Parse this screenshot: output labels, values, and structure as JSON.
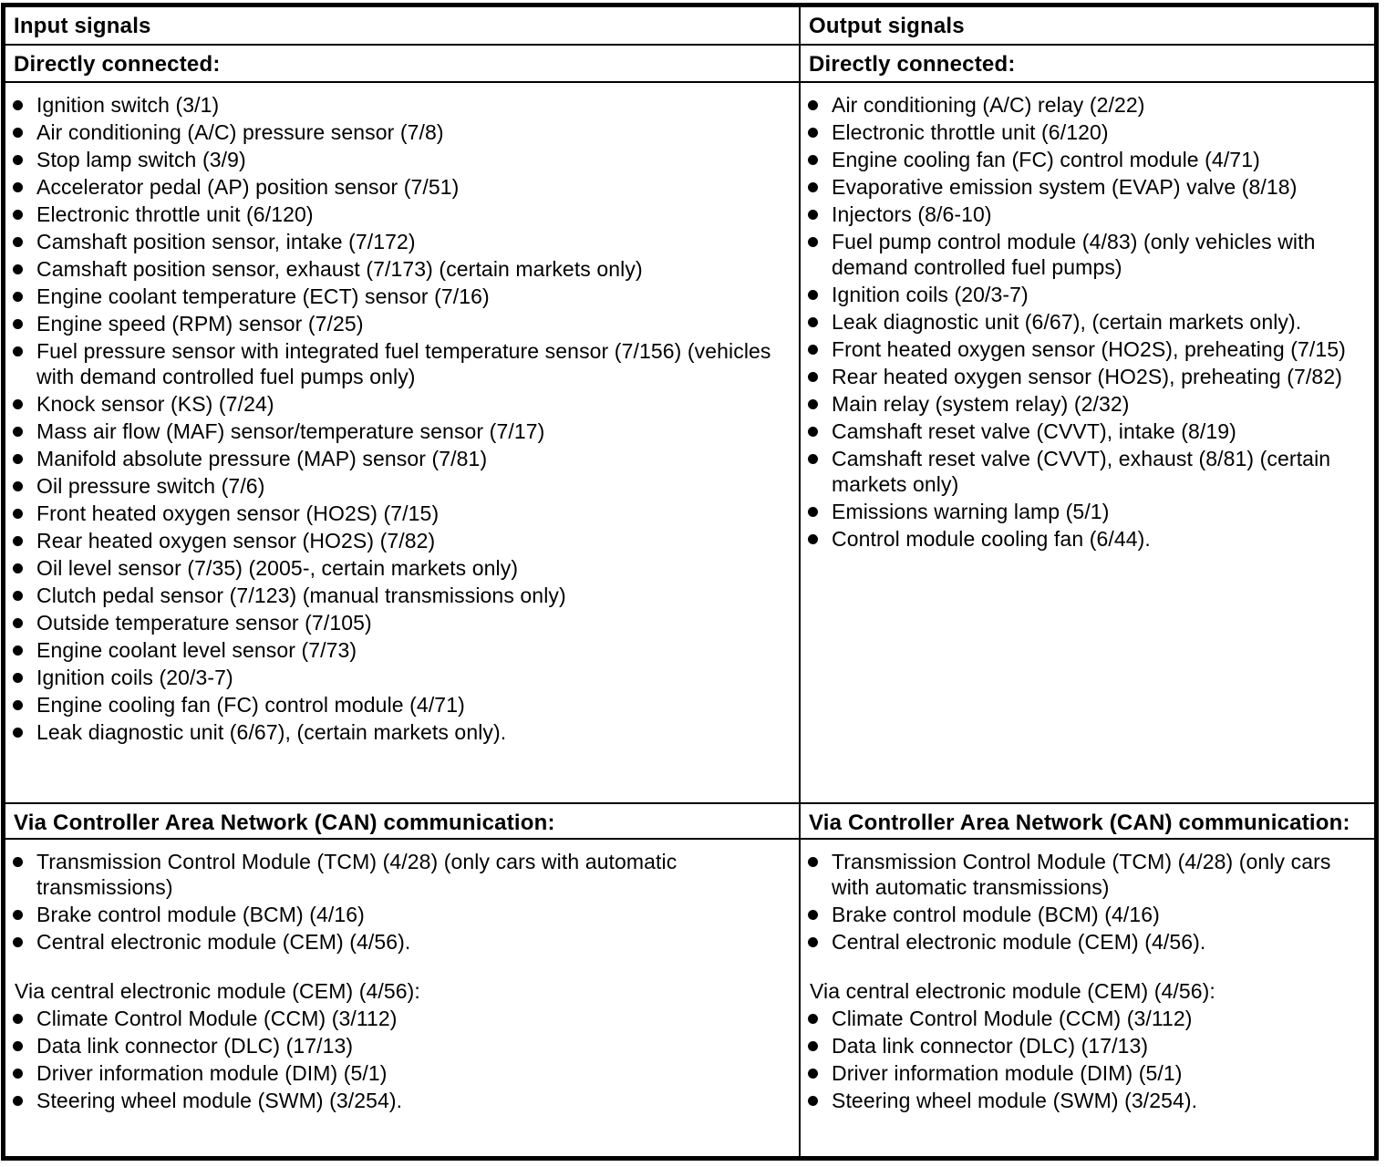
{
  "document": {
    "columns": [
      {
        "header": "Input signals",
        "directly_connected": {
          "label": "Directly connected:",
          "items": [
            "Ignition switch (3/1)",
            "Air conditioning (A/C) pressure sensor (7/8)",
            "Stop lamp switch (3/9)",
            "Accelerator pedal (AP) position sensor (7/51)",
            "Electronic throttle unit (6/120)",
            "Camshaft position sensor, intake (7/172)",
            "Camshaft position sensor, exhaust (7/173) (certain markets only)",
            "Engine coolant temperature (ECT) sensor (7/16)",
            "Engine speed (RPM) sensor (7/25)",
            "Fuel pressure sensor with integrated fuel temperature sensor (7/156) (vehicles with demand controlled fuel pumps only)",
            "Knock sensor (KS) (7/24)",
            "Mass air flow (MAF) sensor/temperature sensor (7/17)",
            "Manifold absolute pressure (MAP) sensor (7/81)",
            "Oil pressure switch (7/6)",
            "Front heated oxygen sensor (HO2S) (7/15)",
            "Rear heated oxygen sensor (HO2S) (7/82)",
            "Oil level sensor (7/35) (2005-, certain markets only)",
            "Clutch pedal sensor (7/123) (manual transmissions only)",
            "Outside temperature sensor (7/105)",
            "Engine coolant level sensor (7/73)",
            "Ignition coils (20/3-7)",
            "Engine cooling fan (FC) control module (4/71)",
            "Leak diagnostic unit (6/67), (certain markets only)."
          ]
        },
        "can": {
          "label": "Via Controller Area Network (CAN) communication:",
          "items": [
            "Transmission Control Module (TCM) (4/28) (only cars with automatic transmissions)",
            "Brake control module (BCM) (4/16)",
            "Central electronic module (CEM) (4/56)."
          ]
        },
        "via_cem": {
          "label": "Via central electronic module (CEM) (4/56):",
          "items": [
            "Climate Control Module (CCM) (3/112)",
            "Data link connector (DLC) (17/13)",
            "Driver information module (DIM) (5/1)",
            "Steering wheel module (SWM) (3/254)."
          ]
        }
      },
      {
        "header": "Output signals",
        "directly_connected": {
          "label": "Directly connected:",
          "items": [
            "Air conditioning (A/C) relay (2/22)",
            "Electronic throttle unit (6/120)",
            "Engine cooling fan (FC) control module (4/71)",
            "Evaporative emission system (EVAP) valve (8/18)",
            "Injectors (8/6-10)",
            "Fuel pump control module (4/83) (only vehicles with demand controlled fuel pumps)",
            "Ignition coils (20/3-7)",
            "Leak diagnostic unit (6/67), (certain markets only).",
            "Front heated oxygen sensor (HO2S), preheating (7/15)",
            "Rear heated oxygen sensor (HO2S), preheating (7/82)",
            "Main relay (system relay) (2/32)",
            "Camshaft reset valve (CVVT), intake (8/19)",
            "Camshaft reset valve (CVVT), exhaust (8/81) (certain markets only)",
            "Emissions warning lamp (5/1)",
            "Control module cooling fan (6/44)."
          ]
        },
        "can": {
          "label": "Via Controller Area Network (CAN) communication:",
          "items": [
            "Transmission Control Module (TCM) (4/28) (only cars with automatic transmissions)",
            "Brake control module (BCM) (4/16)",
            "Central electronic module (CEM) (4/56)."
          ]
        },
        "via_cem": {
          "label": "Via central electronic module (CEM) (4/56):",
          "items": [
            "Climate Control Module (CCM) (3/112)",
            "Data link connector (DLC) (17/13)",
            "Driver information module (DIM) (5/1)",
            "Steering wheel module (SWM) (3/254)."
          ]
        }
      }
    ]
  }
}
